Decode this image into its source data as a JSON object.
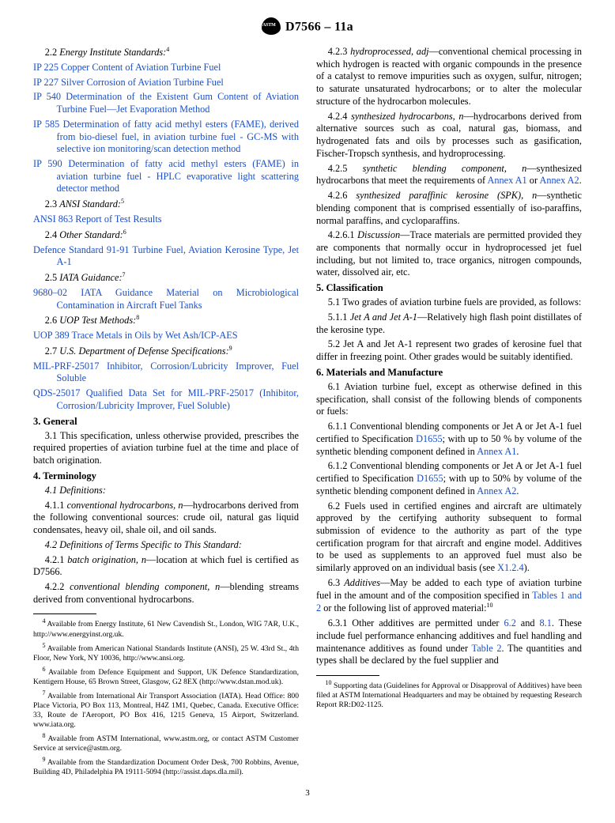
{
  "header": "D7566 – 11a",
  "leftCol": {
    "s22": {
      "num": "2.2",
      "title": "Energy Institute Standards:",
      "fn": "4"
    },
    "ip225": {
      "c": "IP 225",
      "t": " Copper Content of Aviation Turbine Fuel"
    },
    "ip227": {
      "c": "IP 227",
      "t": " Silver Corrosion of Aviation Turbine Fuel"
    },
    "ip540": {
      "c": "IP 540",
      "t": " Determination of the Existent Gum Content of Aviation Turbine Fuel—Jet Evaporation Method"
    },
    "ip585": {
      "c": "IP 585",
      "t": " Determination of fatty acid methyl esters (FAME), derived from bio-diesel fuel, in aviation turbine fuel - GC-MS with selective ion monitoring/scan detection method"
    },
    "ip590": {
      "c": "IP 590",
      "t": " Determination of fatty acid methyl esters (FAME) in aviation turbine fuel - HPLC evaporative light scattering detector method"
    },
    "s23": {
      "num": "2.3",
      "title": "ANSI Standard:",
      "fn": "5"
    },
    "ansi": {
      "c": "ANSI 863",
      "t": " Report of Test Results"
    },
    "s24": {
      "num": "2.4",
      "title": "Other Standard:",
      "fn": "6"
    },
    "def": {
      "c": "Defence Standard 91-91",
      "t": " Turbine Fuel, Aviation Kerosine Type, Jet A-1"
    },
    "s25": {
      "num": "2.5",
      "title": "IATA Guidance:",
      "fn": "7"
    },
    "iata": {
      "c": "9680–02",
      "t": " IATA Guidance Material on Microbiological Contamination in Aircraft Fuel Tanks"
    },
    "s26": {
      "num": "2.6",
      "title": "UOP Test Methods:",
      "fn": "8"
    },
    "uop": {
      "c": "UOP 389",
      "t": " Trace Metals in Oils by Wet Ash/ICP-AES"
    },
    "s27": {
      "num": "2.7",
      "title": "U.S. Department of Defense Specifications:",
      "fn": "9"
    },
    "mil": {
      "c": "MIL-PRF-25017",
      "t": " Inhibitor, Corrosion/Lubricity Improver, Fuel Soluble"
    },
    "qds": {
      "c": "QDS-25017",
      "t": " Qualified Data Set for MIL-PRF-25017 (Inhibitor, Corrosion/Lubricity Improver, Fuel Soluble)"
    },
    "sec3": {
      "h": "3. General",
      "p31": "3.1 This specification, unless otherwise provided, prescribes the required properties of aviation turbine fuel at the time and place of batch origination."
    },
    "sec4": {
      "h": "4. Terminology",
      "p41": "4.1 Definitions:",
      "p411a": "4.1.1 ",
      "p411i": "conventional hydrocarbons, n",
      "p411b": "—hydrocarbons derived from the following conventional sources: crude oil, natural gas liquid condensates, heavy oil, shale oil, and oil sands.",
      "p42": "4.2 Definitions of Terms Specific to This Standard:",
      "p421a": "4.2.1 ",
      "p421i": "batch origination, n",
      "p421b": "—location at which fuel is certified as D7566.",
      "p422a": "4.2.2 ",
      "p422i": "conventional blending component, n",
      "p422b": "—blending streams derived from conventional hydrocarbons."
    },
    "footnotes": {
      "f4": "Available from Energy Institute, 61 New Cavendish St., London, WIG 7AR, U.K., http://www.energyinst.org.uk.",
      "f5": "Available from American National Standards Institute (ANSI), 25 W. 43rd St., 4th Floor, New York, NY 10036, http://www.ansi.org.",
      "f6": "Available from Defence Equipment and Support, UK Defence Standardization, Kentigern House, 65 Brown Street, Glasgow, G2 8EX (http://www.dstan.mod.uk).",
      "f7": "Available from International Air Transport Association (IATA). Head Office: 800 Place Victoria, PO Box 113, Montreal, H4Z 1M1, Quebec, Canada. Executive Office: 33, Route de l'Aeroport, PO Box 416, 1215 Geneva, 15 Airport, Switzerland. www.iata.org.",
      "f8": "Available from ASTM International, www.astm.org, or contact ASTM Customer Service at service@astm.org.",
      "f9": "Available from the Standardization Document Order Desk, 700 Robbins, Avenue, Building 4D, Philadelphia PA 19111-5094 (http://assist.daps.dla.mil)."
    }
  },
  "rightCol": {
    "p423a": "4.2.3 ",
    "p423i": "hydroprocessed, adj",
    "p423b": "—conventional chemical processing in which hydrogen is reacted with organic compounds in the presence of a catalyst to remove impurities such as oxygen, sulfur, nitrogen; to saturate unsaturated hydrocarbons; or to alter the molecular structure of the hydrocarbon molecules.",
    "p424a": "4.2.4 ",
    "p424i": "synthesized hydrocarbons, n",
    "p424b": "—hydrocarbons derived from alternative sources such as coal, natural gas, biomass, and hydrogenated fats and oils by processes such as gasification, Fischer-Tropsch synthesis, and hydroprocessing.",
    "p425a": "4.2.5 ",
    "p425i": "synthetic blending component, n",
    "p425b1": "—synthesized hydrocarbons that meet the requirements of ",
    "p425L1": "Annex A1",
    "p425b2": " or ",
    "p425L2": "Annex A2",
    "p425b3": ".",
    "p426a": "4.2.6 ",
    "p426i": "synthesized paraffinic kerosine (SPK), n",
    "p426b": "—synthetic blending component that is comprised essentially of iso-paraffins, normal paraffins, and cycloparaffins.",
    "p4261a": "4.2.6.1 ",
    "p4261i": "Discussion",
    "p4261b": "—Trace materials are permitted provided they are components that normally occur in hydroprocessed jet fuel including, but not limited to, trace organics, nitrogen compounds, water, dissolved air, etc.",
    "sec5": {
      "h": "5. Classification",
      "p51": "5.1 Two grades of aviation turbine fuels are provided, as follows:",
      "p511a": "5.1.1 ",
      "p511i": "Jet A and Jet A-1",
      "p511b": "—Relatively high flash point distillates of the kerosine type.",
      "p52": "5.2 Jet A and Jet A-1 represent two grades of kerosine fuel that differ in freezing point. Other grades would be suitably identified."
    },
    "sec6": {
      "h": "6. Materials and Manufacture",
      "p61": "6.1 Aviation turbine fuel, except as otherwise defined in this specification, shall consist of the following blends of components or fuels:",
      "p611a": "6.1.1 Conventional blending components or Jet A or Jet A-1 fuel certified to Specification ",
      "p611L1": "D1655",
      "p611b": "; with up to 50 % by volume of the synthetic blending component defined in ",
      "p611L2": "Annex A1",
      "p611c": ".",
      "p612a": "6.1.2 Conventional blending components or Jet A or Jet A-1 fuel certified to Specification ",
      "p612L1": "D1655",
      "p612b": "; with up to 50% by volume of the synthetic blending component defined in ",
      "p612L2": "Annex A2",
      "p612c": ".",
      "p62a": "6.2 Fuels used in certified engines and aircraft are ultimately approved by the certifying authority subsequent to formal submission of evidence to the authority as part of the type certification program for that aircraft and engine model. Additives to be used as supplements to an approved fuel must also be similarly approved on an individual basis (see ",
      "p62L": "X1.2.4",
      "p62b": ").",
      "p63a": "6.3 ",
      "p63i": "Additives",
      "p63b": "—May be added to each type of aviation turbine fuel in the amount and of the composition specified in ",
      "p63L": "Tables 1 and 2",
      "p63c": " or the following list of approved material:",
      "p63fn": "10",
      "p631a": "6.3.1 Other additives are permitted under ",
      "p631L1": "6.2",
      "p631b": " and ",
      "p631L2": "8.1",
      "p631c": ". These include fuel performance enhancing additives and fuel handling and maintenance additives as found under ",
      "p631L3": "Table 2",
      "p631d": ". The quantities and types shall be declared by the fuel supplier and"
    },
    "footnotes": {
      "f10": "Supporting data (Guidelines for Approval or Disapproval of Additives) have been filed at ASTM International Headquarters and may be obtained by requesting Research Report RR:D02-1125."
    }
  },
  "pagenum": "3"
}
